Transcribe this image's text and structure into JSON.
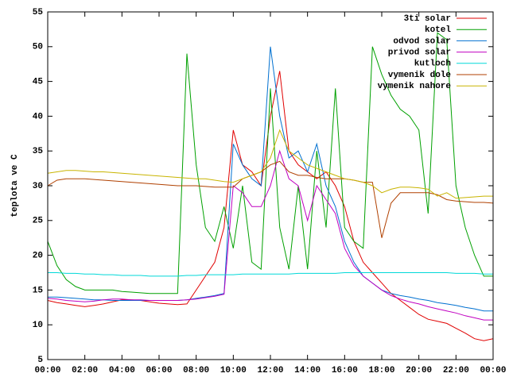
{
  "chart_data": {
    "type": "line",
    "ylabel": "teplota ve C",
    "x": [
      0,
      0.5,
      1,
      1.5,
      2,
      2.5,
      3,
      3.5,
      4,
      4.5,
      5,
      5.5,
      6,
      6.5,
      7,
      7.5,
      8,
      8.5,
      9,
      9.5,
      10,
      10.5,
      11,
      11.5,
      12,
      12.5,
      13,
      13.5,
      14,
      14.5,
      15,
      15.5,
      16,
      16.5,
      17,
      17.5,
      18,
      18.5,
      19,
      19.5,
      20,
      20.5,
      21,
      21.5,
      22,
      22.5,
      23,
      23.5,
      24
    ],
    "xlim": [
      0,
      24
    ],
    "xticks": [
      {
        "value": 0,
        "label": "00:00"
      },
      {
        "value": 2,
        "label": "02:00"
      },
      {
        "value": 4,
        "label": "04:00"
      },
      {
        "value": 6,
        "label": "06:00"
      },
      {
        "value": 8,
        "label": "08:00"
      },
      {
        "value": 10,
        "label": "10:00"
      },
      {
        "value": 12,
        "label": "12:00"
      },
      {
        "value": 14,
        "label": "14:00"
      },
      {
        "value": 16,
        "label": "16:00"
      },
      {
        "value": 18,
        "label": "18:00"
      },
      {
        "value": 20,
        "label": "20:00"
      },
      {
        "value": 22,
        "label": "22:00"
      },
      {
        "value": 24,
        "label": "00:00"
      }
    ],
    "ylim": [
      5,
      55
    ],
    "yticks": [
      5,
      10,
      15,
      20,
      25,
      30,
      35,
      40,
      45,
      50,
      55
    ],
    "grid": false,
    "legend": "top-right",
    "series": [
      {
        "name": "3ti solar",
        "color": "#e00000",
        "values": [
          13.5,
          13.2,
          13,
          12.8,
          12.6,
          12.8,
          13,
          13.3,
          13.6,
          13.6,
          13.5,
          13.3,
          13.1,
          13,
          12.9,
          13,
          15,
          17,
          19,
          24,
          38,
          33,
          32,
          30,
          40,
          46.5,
          35,
          33,
          32,
          31,
          32,
          30,
          27,
          22,
          19,
          17.5,
          16,
          14.5,
          13.5,
          12.5,
          11.5,
          10.8,
          10.5,
          10.2,
          9.5,
          8.8,
          8,
          7.7,
          8
        ]
      },
      {
        "name": "kotel",
        "color": "#00a000",
        "values": [
          22,
          18.5,
          16.5,
          15.5,
          15,
          15,
          15,
          15,
          14.8,
          14.7,
          14.6,
          14.5,
          14.5,
          14.5,
          14.5,
          49,
          33,
          24,
          22,
          27,
          21,
          30,
          19,
          18,
          44,
          24,
          18,
          30,
          18,
          35,
          24,
          44,
          24,
          22,
          21,
          50,
          46,
          43,
          41,
          40,
          38,
          26,
          52,
          51,
          30,
          24,
          20,
          17,
          17
        ]
      },
      {
        "name": "odvod solar",
        "color": "#0070d0",
        "values": [
          14,
          14,
          13.9,
          13.8,
          13.7,
          13.6,
          13.6,
          13.5,
          13.5,
          13.5,
          13.5,
          13.5,
          13.5,
          13.5,
          13.5,
          13.6,
          13.8,
          14,
          14.2,
          14.5,
          36,
          33,
          31,
          30,
          50,
          40,
          34,
          35,
          32,
          36,
          30,
          27,
          22,
          19,
          17,
          16,
          15,
          14.5,
          14.2,
          14,
          13.7,
          13.5,
          13.2,
          13,
          12.8,
          12.5,
          12.3,
          12,
          12
        ]
      },
      {
        "name": "privod solar",
        "color": "#c000c0",
        "values": [
          13.8,
          13.7,
          13.5,
          13.4,
          13.3,
          13.4,
          13.6,
          13.7,
          13.7,
          13.6,
          13.6,
          13.5,
          13.5,
          13.5,
          13.5,
          13.6,
          13.7,
          13.9,
          14.1,
          14.4,
          30,
          29,
          27,
          27,
          30,
          35,
          31,
          30,
          25,
          30,
          28,
          26,
          21,
          18.5,
          17,
          16,
          15,
          14.2,
          13.7,
          13.3,
          13,
          12.6,
          12.3,
          12,
          11.7,
          11.3,
          11,
          10.7,
          10.7
        ]
      },
      {
        "name": "kutloch",
        "color": "#00d8d8",
        "values": [
          17.5,
          17.5,
          17.4,
          17.4,
          17.3,
          17.3,
          17.2,
          17.2,
          17.1,
          17.1,
          17.1,
          17,
          17,
          17,
          17,
          17.1,
          17.1,
          17.2,
          17.2,
          17.2,
          17.2,
          17.3,
          17.3,
          17.3,
          17.3,
          17.3,
          17.3,
          17.4,
          17.4,
          17.4,
          17.4,
          17.4,
          17.5,
          17.5,
          17.5,
          17.5,
          17.5,
          17.5,
          17.5,
          17.5,
          17.5,
          17.5,
          17.5,
          17.5,
          17.4,
          17.4,
          17.4,
          17.3,
          17.3
        ]
      },
      {
        "name": "vymenik dole",
        "color": "#b04000",
        "values": [
          30,
          30.8,
          31,
          31,
          31,
          30.9,
          30.8,
          30.7,
          30.6,
          30.5,
          30.4,
          30.3,
          30.2,
          30.1,
          30,
          30,
          30,
          29.9,
          29.8,
          29.8,
          29.8,
          31,
          31.5,
          32,
          33,
          33.5,
          32,
          31.5,
          31.5,
          31.2,
          31,
          31,
          31,
          30.8,
          30.5,
          30.5,
          22.5,
          27.5,
          29,
          29,
          29,
          29,
          28.7,
          28,
          27.8,
          27.7,
          27.6,
          27.6,
          27.5
        ]
      },
      {
        "name": "vymenik nahore",
        "color": "#c8b400",
        "values": [
          31.8,
          32,
          32.2,
          32.2,
          32.1,
          32,
          32,
          31.9,
          31.8,
          31.7,
          31.6,
          31.5,
          31.4,
          31.3,
          31.2,
          31.1,
          31,
          31,
          30.8,
          30.6,
          30.5,
          31,
          31.5,
          32,
          34,
          38,
          35,
          34,
          33,
          32.5,
          32,
          31.5,
          31,
          30.8,
          30.5,
          30,
          29,
          29.5,
          29.8,
          29.8,
          29.7,
          29.5,
          28.5,
          29,
          28.2,
          28.3,
          28.4,
          28.5,
          28.5
        ]
      }
    ]
  }
}
